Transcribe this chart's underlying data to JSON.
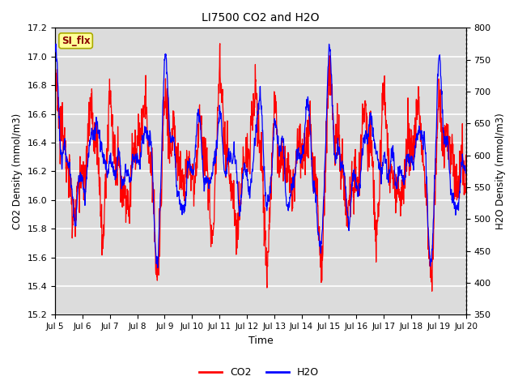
{
  "title": "LI7500 CO2 and H2O",
  "xlabel": "Time",
  "ylabel_left": "CO2 Density (mmol/m3)",
  "ylabel_right": "H2O Density (mmol/m3)",
  "ylim_left": [
    15.2,
    17.2
  ],
  "ylim_right": [
    350,
    800
  ],
  "yticks_left": [
    15.2,
    15.4,
    15.6,
    15.8,
    16.0,
    16.2,
    16.4,
    16.6,
    16.8,
    17.0,
    17.2
  ],
  "yticks_right": [
    350,
    400,
    450,
    500,
    550,
    600,
    650,
    700,
    750,
    800
  ],
  "xtick_labels": [
    "Jul 5",
    "Jul 6",
    "Jul 7",
    "Jul 8",
    "Jul 9",
    "Jul 10",
    "Jul 11",
    "Jul 12",
    "Jul 13",
    "Jul 14",
    "Jul 15",
    "Jul 16",
    "Jul 17",
    "Jul 18",
    "Jul 19",
    "Jul 20"
  ],
  "co2_color": "#FF0000",
  "h2o_color": "#0000FF",
  "background_color": "#DCDCDC",
  "annotation_text": "SI_flx",
  "annotation_bbox_facecolor": "#FFFF99",
  "annotation_bbox_edgecolor": "#AAAA00",
  "grid_color": "#FFFFFF",
  "legend_co2": "CO2",
  "legend_h2o": "H2O",
  "n_points": 2000,
  "figsize": [
    6.4,
    4.8
  ],
  "dpi": 100
}
